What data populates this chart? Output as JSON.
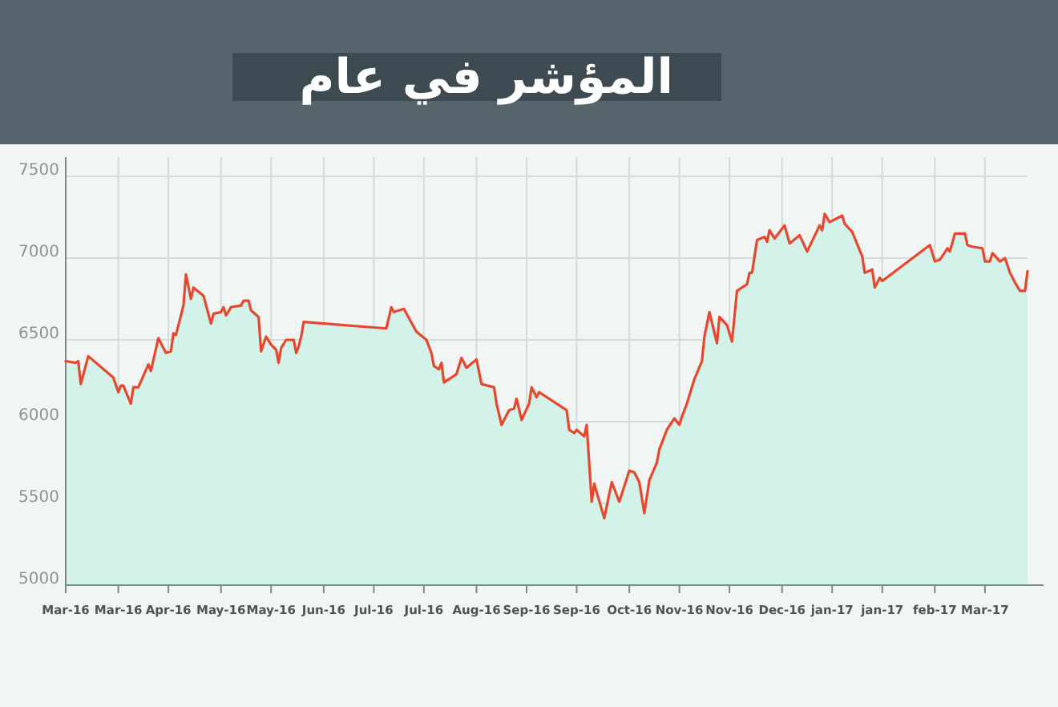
{
  "chart_data": {
    "type": "area",
    "title": "المؤشر في عام",
    "x": [
      "2016-03-10",
      "2016-03-14",
      "2016-03-15",
      "2016-03-16",
      "2016-03-19",
      "2016-03-29",
      "2016-03-31",
      "2016-04-01",
      "2016-04-02",
      "2016-04-05",
      "2016-04-06",
      "2016-04-08",
      "2016-04-12",
      "2016-04-13",
      "2016-04-16",
      "2016-04-19",
      "2016-04-21",
      "2016-04-22",
      "2016-04-23",
      "2016-04-26",
      "2016-04-27",
      "2016-04-29",
      "2016-04-30",
      "2016-05-04",
      "2016-05-07",
      "2016-05-08",
      "2016-05-11",
      "2016-05-12",
      "2016-05-13",
      "2016-05-15",
      "2016-05-19",
      "2016-05-20",
      "2016-05-22",
      "2016-05-23",
      "2016-05-26",
      "2016-05-27",
      "2016-05-29",
      "2016-05-31",
      "2016-06-02",
      "2016-06-03",
      "2016-06-04",
      "2016-06-06",
      "2016-06-09",
      "2016-06-10",
      "2016-06-11",
      "2016-06-12",
      "2016-06-13",
      "2016-07-16",
      "2016-07-18",
      "2016-07-19",
      "2016-07-23",
      "2016-07-28",
      "2016-08-01",
      "2016-08-03",
      "2016-08-04",
      "2016-08-06",
      "2016-08-07",
      "2016-08-08",
      "2016-08-13",
      "2016-08-15",
      "2016-08-17",
      "2016-08-21",
      "2016-08-23",
      "2016-08-28",
      "2016-08-29",
      "2016-08-31",
      "2016-09-03",
      "2016-09-05",
      "2016-09-06",
      "2016-09-08",
      "2016-09-11",
      "2016-09-12",
      "2016-09-14",
      "2016-09-15",
      "2016-09-26",
      "2016-09-27",
      "2016-09-29",
      "2016-09-30",
      "2016-10-03",
      "2016-10-04",
      "2016-10-06",
      "2016-10-07",
      "2016-10-11",
      "2016-10-14",
      "2016-10-17",
      "2016-10-21",
      "2016-10-23",
      "2016-10-25",
      "2016-10-27",
      "2016-10-29",
      "2016-11-01",
      "2016-11-02",
      "2016-11-05",
      "2016-11-08",
      "2016-11-10",
      "2016-11-11",
      "2016-11-13",
      "2016-11-16",
      "2016-11-19",
      "2016-11-20",
      "2016-11-22",
      "2016-11-25",
      "2016-11-26",
      "2016-11-29",
      "2016-12-01",
      "2016-12-03",
      "2016-12-07",
      "2016-12-08",
      "2016-12-09",
      "2016-12-11",
      "2016-12-14",
      "2016-12-15",
      "2016-12-16",
      "2016-12-18",
      "2016-12-22",
      "2016-12-24",
      "2016-12-28",
      "2016-12-31",
      "2017-01-05",
      "2017-01-06",
      "2017-01-07",
      "2017-01-09",
      "2017-01-14",
      "2017-01-15",
      "2017-01-18",
      "2017-01-22",
      "2017-01-23",
      "2017-01-26",
      "2017-01-27",
      "2017-01-29",
      "2017-01-30",
      "2017-02-18",
      "2017-02-20",
      "2017-02-22",
      "2017-02-25",
      "2017-02-26",
      "2017-02-28",
      "2017-03-04",
      "2017-03-05",
      "2017-03-07",
      "2017-03-11",
      "2017-03-12",
      "2017-03-14",
      "2017-03-15",
      "2017-03-18",
      "2017-03-20",
      "2017-03-22",
      "2017-03-24",
      "2017-03-26",
      "2017-03-28",
      "2017-03-29"
    ],
    "series": [
      {
        "color": "#e8472d",
        "values": [
          6370,
          6360,
          6370,
          6230,
          6400,
          6270,
          6180,
          6220,
          6220,
          6110,
          6210,
          6210,
          6350,
          6310,
          6510,
          6420,
          6430,
          6540,
          6530,
          6710,
          6900,
          6750,
          6820,
          6770,
          6600,
          6660,
          6670,
          6700,
          6650,
          6700,
          6710,
          6740,
          6740,
          6680,
          6640,
          6430,
          6520,
          6470,
          6440,
          6360,
          6450,
          6500,
          6500,
          6420,
          6460,
          6520,
          6610,
          6570,
          6700,
          6670,
          6690,
          6550,
          6500,
          6420,
          6340,
          6320,
          6360,
          6240,
          6290,
          6390,
          6330,
          6380,
          6230,
          6210,
          6110,
          5980,
          6070,
          6080,
          6140,
          6010,
          6110,
          6210,
          6150,
          6180,
          6070,
          5950,
          5930,
          5950,
          5910,
          5980,
          5510,
          5620,
          5410,
          5630,
          5510,
          5700,
          5690,
          5630,
          5440,
          5640,
          5750,
          5830,
          5950,
          6020,
          5980,
          6030,
          6110,
          6260,
          6370,
          6520,
          6670,
          6480,
          6640,
          6590,
          6490,
          6800,
          6840,
          6910,
          6910,
          7110,
          7130,
          7100,
          7170,
          7120,
          7200,
          7090,
          7140,
          7040,
          7200,
          7170,
          7270,
          7220,
          7260,
          7210,
          7160,
          7010,
          6910,
          6930,
          6820,
          6880,
          6860,
          7080,
          6980,
          6990,
          7060,
          7040,
          7150,
          7150,
          7080,
          7070,
          7060,
          6980,
          6980,
          7030,
          6980,
          7000,
          6910,
          6850,
          6800,
          6800,
          6920
        ]
      }
    ],
    "xlim": [
      "2016-03-10",
      "2017-03-29"
    ],
    "xticks": [
      {
        "value": "2016-03-10",
        "label": "Mar-16"
      },
      {
        "value": "2016-03-31",
        "label": "Mar-16"
      },
      {
        "value": "2016-04-20",
        "label": "Apr-16"
      },
      {
        "value": "2016-05-11",
        "label": "May-16"
      },
      {
        "value": "2016-05-31",
        "label": "May-16"
      },
      {
        "value": "2016-06-21",
        "label": "Jun-16"
      },
      {
        "value": "2016-07-11",
        "label": "Jul-16"
      },
      {
        "value": "2016-07-31",
        "label": "Jul-16"
      },
      {
        "value": "2016-08-21",
        "label": "Aug-16"
      },
      {
        "value": "2016-09-10",
        "label": "Sep-16"
      },
      {
        "value": "2016-09-30",
        "label": "Sep-16"
      },
      {
        "value": "2016-10-21",
        "label": "Oct-16"
      },
      {
        "value": "2016-11-10",
        "label": "Nov-16"
      },
      {
        "value": "2016-11-30",
        "label": "Nov-16"
      },
      {
        "value": "2016-12-21",
        "label": "Dec-16"
      },
      {
        "value": "2017-01-10",
        "label": "jan-17"
      },
      {
        "value": "2017-01-30",
        "label": "jan-17"
      },
      {
        "value": "2017-02-20",
        "label": "feb-17"
      },
      {
        "value": "2017-03-12",
        "label": "Mar-17"
      }
    ],
    "ylim": [
      5000,
      7500
    ],
    "yticks": [
      5000,
      5500,
      6000,
      6500,
      7000,
      7500
    ],
    "grid": true,
    "marker": "none",
    "line_style": "solid"
  }
}
